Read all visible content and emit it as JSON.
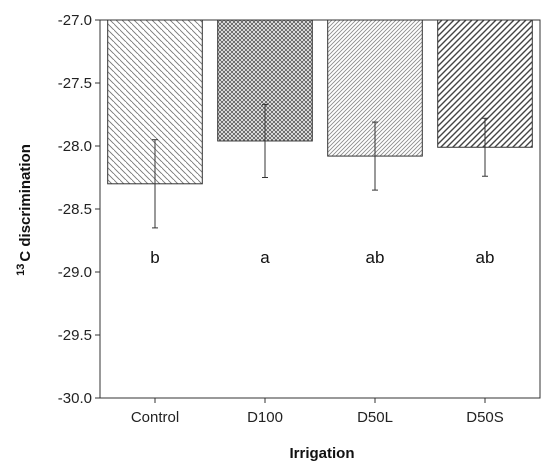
{
  "chart_data": {
    "type": "bar",
    "title": "",
    "xlabel": "Irrigation",
    "ylabel": "C discrimination",
    "ylabel_superscript": "13",
    "categories": [
      "Control",
      "D100",
      "D50L",
      "D50S"
    ],
    "values": [
      -28.3,
      -27.96,
      -28.08,
      -28.01
    ],
    "error": [
      0.35,
      0.29,
      0.27,
      0.23
    ],
    "significance_letters": [
      "b",
      "a",
      "ab",
      "ab"
    ],
    "letter_y": -28.88,
    "bar_base": -27.0,
    "ylim": [
      -30.0,
      -27.0
    ],
    "yticks": [
      "-27.0",
      "-27.5",
      "-28.0",
      "-28.5",
      "-29.0",
      "-29.5",
      "-30.0"
    ],
    "ytick_values": [
      -27.0,
      -27.5,
      -28.0,
      -28.5,
      -29.0,
      -29.5,
      -30.0
    ],
    "patterns": [
      "diag-right-light",
      "crosshatch",
      "diag-left-dense",
      "diag-left-bold"
    ],
    "grid": false,
    "legend": "none"
  }
}
